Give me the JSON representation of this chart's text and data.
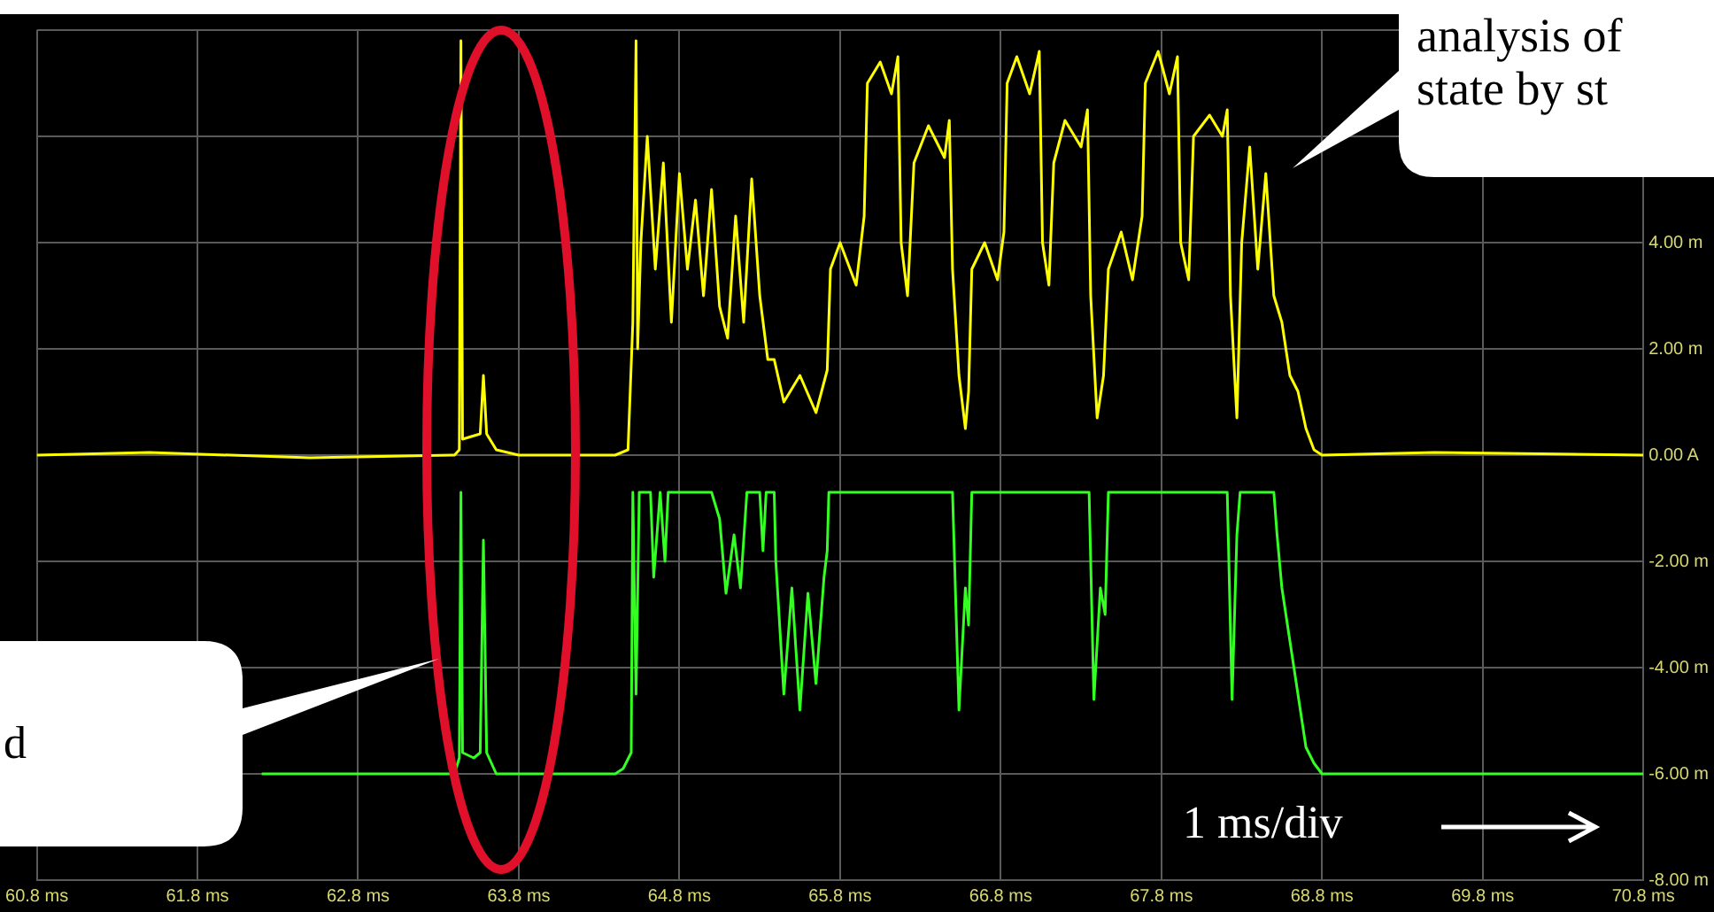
{
  "chart_data": {
    "type": "line",
    "xlim": [
      60.8,
      70.8
    ],
    "ylim": [
      -8,
      8
    ],
    "xticks": [
      {
        "value": 60.8,
        "label": "60.8 ms"
      },
      {
        "value": 61.8,
        "label": "61.8 ms"
      },
      {
        "value": 62.8,
        "label": "62.8 ms"
      },
      {
        "value": 63.8,
        "label": "63.8 ms"
      },
      {
        "value": 64.8,
        "label": "64.8 ms"
      },
      {
        "value": 65.8,
        "label": "65.8 ms"
      },
      {
        "value": 66.8,
        "label": "66.8 ms"
      },
      {
        "value": 67.8,
        "label": "67.8 ms"
      },
      {
        "value": 68.8,
        "label": "68.8 ms"
      },
      {
        "value": 69.8,
        "label": "69.8 ms"
      },
      {
        "value": 70.8,
        "label": "70.8 ms"
      }
    ],
    "yticks": [
      {
        "value": -8,
        "label": "-8.00 m"
      },
      {
        "value": -6,
        "label": "-6.00 m"
      },
      {
        "value": -4,
        "label": "-4.00 m"
      },
      {
        "value": -2,
        "label": "-2.00 m"
      },
      {
        "value": 0,
        "label": "0.00 A"
      },
      {
        "value": 2,
        "label": "2.00 m"
      },
      {
        "value": 4,
        "label": "4.00 m"
      },
      {
        "value": 6,
        "label": null
      },
      {
        "value": 8,
        "label": null
      }
    ],
    "grid": true,
    "marker": "none",
    "annotations": [
      "analysis of state by st",
      "d",
      "1 ms/div"
    ],
    "series": [
      {
        "color": "#ffff00",
        "x": [
          60.8,
          61.5,
          62.5,
          63.4,
          63.43,
          63.44,
          63.45,
          63.56,
          63.58,
          63.6,
          63.66,
          63.8,
          64.4,
          64.48,
          64.51,
          64.53,
          64.54,
          64.56,
          64.6,
          64.65,
          64.7,
          64.75,
          64.8,
          64.85,
          64.9,
          64.95,
          65.0,
          65.05,
          65.1,
          65.15,
          65.2,
          65.25,
          65.3,
          65.35,
          65.39,
          65.45,
          65.55,
          65.65,
          65.72,
          65.74,
          65.8,
          65.9,
          65.95,
          65.97,
          66.05,
          66.12,
          66.16,
          66.18,
          66.22,
          66.26,
          66.35,
          66.45,
          66.48,
          66.5,
          66.54,
          66.58,
          66.6,
          66.62,
          66.7,
          66.78,
          66.82,
          66.84,
          66.9,
          66.98,
          67.04,
          67.06,
          67.1,
          67.13,
          67.2,
          67.3,
          67.34,
          67.36,
          67.4,
          67.44,
          67.47,
          67.55,
          67.62,
          67.68,
          67.7,
          67.78,
          67.85,
          67.9,
          67.92,
          67.97,
          68.0,
          68.1,
          68.18,
          68.21,
          68.23,
          68.27,
          68.3,
          68.35,
          68.4,
          68.45,
          68.5,
          68.55,
          68.6,
          68.65,
          68.7,
          68.75,
          68.8,
          69.5,
          70.8
        ],
        "values": [
          0,
          0.05,
          -0.05,
          0,
          0.1,
          7.8,
          0.3,
          0.4,
          1.5,
          0.4,
          0.1,
          0,
          0,
          0.1,
          2.5,
          7.8,
          2.0,
          4.0,
          6.0,
          3.5,
          5.5,
          2.5,
          5.3,
          3.5,
          4.8,
          3.0,
          5.0,
          2.8,
          2.2,
          4.5,
          2.5,
          5.2,
          3.0,
          1.8,
          1.8,
          1.0,
          1.5,
          0.8,
          1.6,
          3.5,
          4.0,
          3.2,
          4.5,
          7.0,
          7.4,
          6.8,
          7.5,
          4.0,
          3.0,
          5.5,
          6.2,
          5.6,
          6.3,
          3.5,
          1.5,
          0.5,
          1.2,
          3.5,
          4.0,
          3.3,
          4.2,
          7.0,
          7.5,
          6.8,
          7.6,
          4.0,
          3.2,
          5.5,
          6.3,
          5.8,
          6.5,
          3.0,
          0.7,
          1.5,
          3.5,
          4.2,
          3.3,
          4.5,
          7.0,
          7.6,
          6.8,
          7.5,
          4.0,
          3.3,
          6.0,
          6.4,
          6.0,
          6.5,
          3.0,
          0.7,
          4.0,
          5.8,
          3.5,
          5.3,
          3.0,
          2.5,
          1.5,
          1.2,
          0.5,
          0.1,
          0,
          0.05,
          0
        ]
      },
      {
        "color": "#33ff22",
        "x": [
          62.2,
          63.4,
          63.43,
          63.44,
          63.45,
          63.52,
          63.56,
          63.58,
          63.6,
          63.66,
          64.4,
          64.45,
          64.5,
          64.51,
          64.53,
          64.55,
          64.62,
          64.64,
          64.68,
          64.71,
          64.73,
          65.0,
          65.05,
          65.09,
          65.14,
          65.18,
          65.22,
          65.3,
          65.32,
          65.34,
          65.39,
          65.4,
          65.45,
          65.5,
          65.55,
          65.6,
          65.65,
          65.7,
          65.72,
          65.73,
          66.5,
          66.54,
          66.58,
          66.6,
          66.62,
          67.35,
          67.38,
          67.42,
          67.45,
          67.47,
          68.21,
          68.24,
          68.27,
          68.29,
          68.5,
          68.52,
          68.55,
          68.6,
          68.65,
          68.7,
          68.75,
          68.8,
          70.8
        ],
        "values": [
          -6,
          -6,
          -5.7,
          -0.7,
          -5.6,
          -5.7,
          -5.6,
          -1.6,
          -5.6,
          -6,
          -6,
          -5.9,
          -5.6,
          -0.7,
          -4.5,
          -0.7,
          -0.7,
          -2.3,
          -0.7,
          -2.0,
          -0.7,
          -0.7,
          -1.2,
          -2.6,
          -1.5,
          -2.5,
          -0.7,
          -0.7,
          -1.8,
          -0.7,
          -0.7,
          -2.0,
          -4.5,
          -2.5,
          -4.8,
          -2.6,
          -4.3,
          -2.3,
          -1.8,
          -0.7,
          -0.7,
          -4.8,
          -2.5,
          -3.2,
          -0.7,
          -0.7,
          -4.6,
          -2.5,
          -3.0,
          -0.7,
          -0.7,
          -4.6,
          -1.5,
          -0.7,
          -0.7,
          -1.5,
          -2.5,
          -3.5,
          -4.5,
          -5.5,
          -5.8,
          -6,
          -6
        ]
      }
    ]
  }
}
